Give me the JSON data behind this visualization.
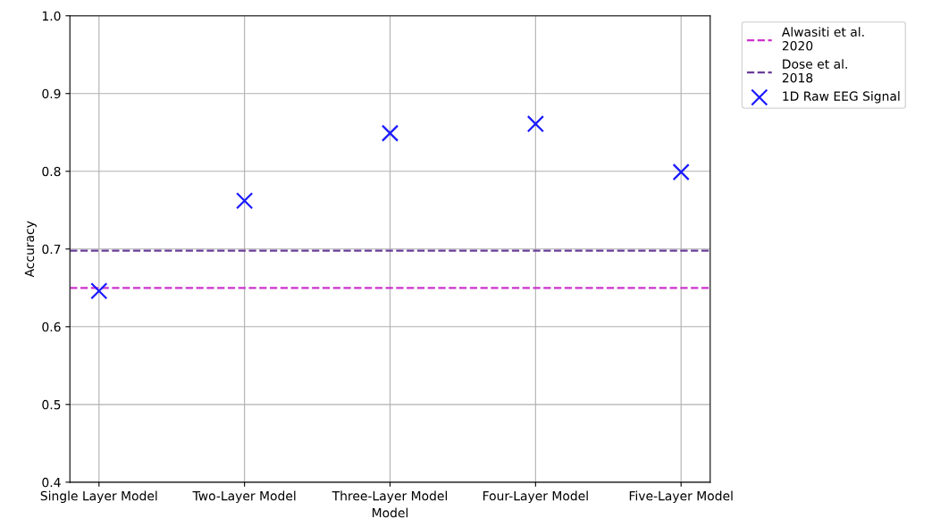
{
  "chart_data": {
    "type": "scatter",
    "xlabel": "Model",
    "ylabel": "Accuracy",
    "categories": [
      "Single Layer Model",
      "Two-Layer Model",
      "Three-Layer Model",
      "Four-Layer Model",
      "Five-Layer Model"
    ],
    "series": [
      {
        "name": "1D Raw EEG Signal",
        "color": "#1a1aff",
        "values": [
          0.646,
          0.762,
          0.849,
          0.861,
          0.799
        ]
      }
    ],
    "marker": "cross",
    "ylim": [
      0.4,
      1.0
    ],
    "yticks": [
      0.4,
      0.5,
      0.6,
      0.7,
      0.8,
      0.9,
      {
        "value": 1.0,
        "label": "1.0"
      }
    ],
    "ref_lines": [
      {
        "axis": "y",
        "value": 0.65,
        "label": "Alwasiti et al.\n2020",
        "color": "#cc33cc",
        "line_style": "dashed"
      },
      {
        "axis": "y",
        "value": 0.698,
        "label": "Dose et al.\n2018",
        "color": "#6a3d9a",
        "line_style": "dashed"
      }
    ],
    "grid": true,
    "legend": "top right"
  }
}
